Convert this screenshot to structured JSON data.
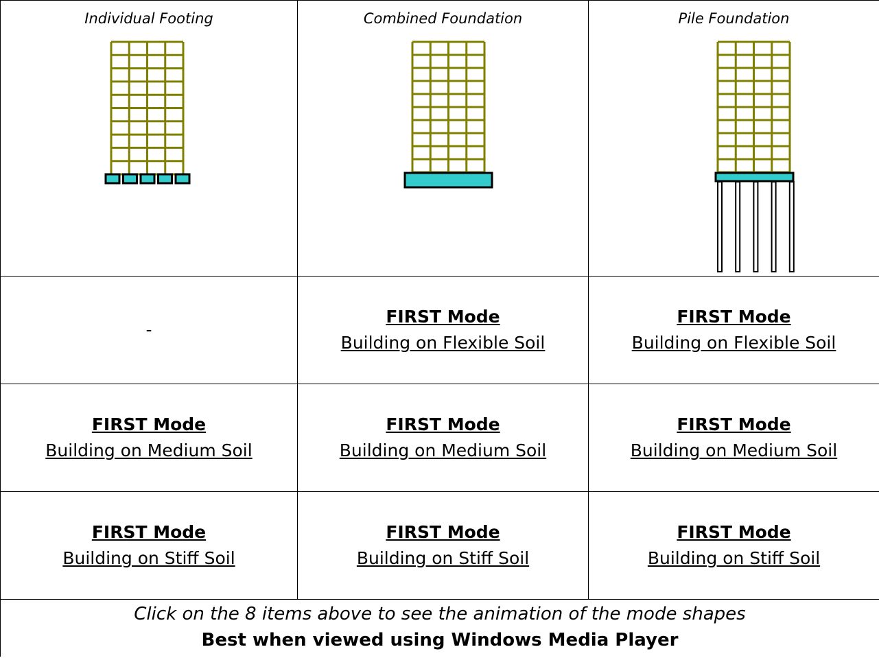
{
  "header": [
    "Individual Footing",
    "Combined Foundation",
    "Pile Foundation"
  ],
  "rows": [
    [
      "-",
      {
        "mode": "FIRST Mode",
        "label": "Building on Flexible Soil"
      },
      {
        "mode": "FIRST Mode",
        "label": "Building on Flexible Soil"
      }
    ],
    [
      {
        "mode": "FIRST Mode",
        "label": "Building on Medium Soil"
      },
      {
        "mode": "FIRST Mode",
        "label": "Building on Medium Soil"
      },
      {
        "mode": "FIRST Mode",
        "label": "Building on Medium Soil"
      }
    ],
    [
      {
        "mode": "FIRST Mode",
        "label": "Building on Stiff Soil"
      },
      {
        "mode": "FIRST Mode",
        "label": "Building on Stiff Soil"
      },
      {
        "mode": "FIRST Mode",
        "label": "Building on Stiff Soil"
      }
    ]
  ],
  "footer": {
    "note": "Click on the 8 items above to see the animation of the mode shapes",
    "tip": "Best when viewed using Windows Media Player"
  }
}
